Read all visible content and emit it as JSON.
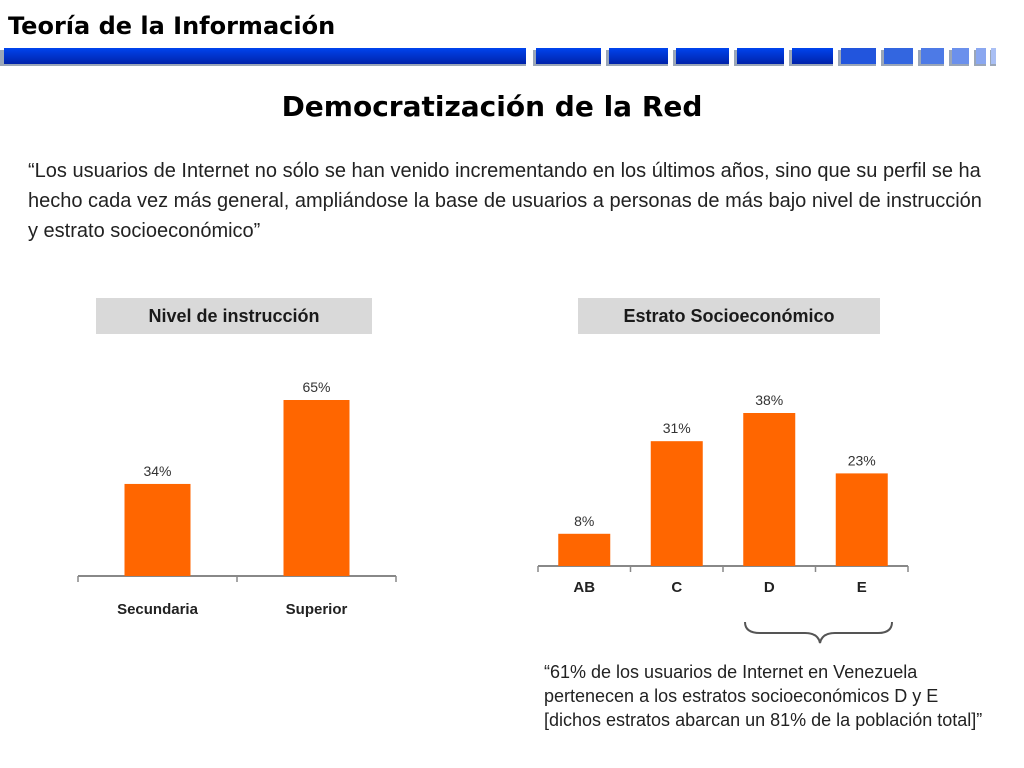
{
  "header": {
    "title": "Teoría de la Información"
  },
  "slide": {
    "title": "Democratización de la Red",
    "intro_quote": "“Los usuarios de Internet no sólo se han venido incrementando en los últimos años, sino que su perfil se ha hecho cada vez más general, ampliándose la base de usuarios a personas de más bajo nivel de instrucción y estrato socioeconómico”",
    "bottom_quote": "“61% de los usuarios de Internet en Venezuela pertenecen a los estratos socioeconómicos D y E [dichos estratos abarcan un 81% de la población total]”"
  },
  "colors": {
    "bar": "#ff6600",
    "header_bar": "#0033cc",
    "title_box": "#d9d9d9",
    "axis": "#888888"
  },
  "chart_data": [
    {
      "type": "bar",
      "title": "Nivel de instrucción",
      "categories": [
        "Secundaria",
        "Superior"
      ],
      "values": [
        34,
        65
      ],
      "data_labels": [
        "34%",
        "65%"
      ],
      "xlabel": "",
      "ylabel": "",
      "ylim": [
        0,
        65
      ],
      "grid": false
    },
    {
      "type": "bar",
      "title": "Estrato Socioeconómico",
      "categories": [
        "AB",
        "C",
        "D",
        "E"
      ],
      "values": [
        8,
        31,
        38,
        23
      ],
      "data_labels": [
        "8%",
        "31%",
        "38%",
        "23%"
      ],
      "xlabel": "",
      "ylabel": "",
      "ylim": [
        0,
        38
      ],
      "grid": false
    }
  ]
}
